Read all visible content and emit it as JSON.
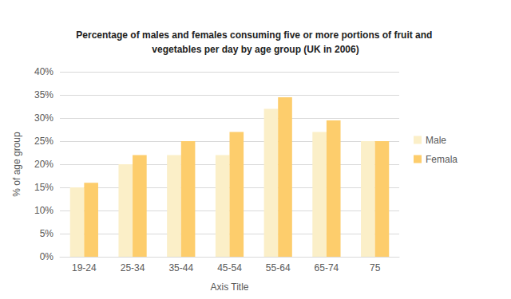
{
  "chart_data": {
    "type": "bar",
    "title": "Percentage of males and females consuming five or more portions of fruit and vegetables per day by age group (UK in 2006)",
    "x_label": "Axis Title",
    "y_label": "% of age group",
    "categories": [
      "19-24",
      "25-34",
      "35-44",
      "45-54",
      "55-64",
      "65-74",
      "75"
    ],
    "series": [
      {
        "name": "Male",
        "color": "#fbefc8",
        "values": [
          15,
          20,
          22,
          22,
          32,
          27,
          25
        ]
      },
      {
        "name": "Femala",
        "color": "#fdcd6c",
        "values": [
          16,
          22,
          25,
          27,
          34.5,
          29.5,
          25
        ]
      }
    ],
    "ylim": [
      0,
      40
    ],
    "yticks": [
      {
        "value": 0,
        "label": "0%"
      },
      {
        "value": 5,
        "label": "5%"
      },
      {
        "value": 10,
        "label": "10%"
      },
      {
        "value": 15,
        "label": "15%"
      },
      {
        "value": 20,
        "label": "20%"
      },
      {
        "value": 25,
        "label": "25%"
      },
      {
        "value": 30,
        "label": "30%"
      },
      {
        "value": 35,
        "label": "35%"
      },
      {
        "value": 40,
        "label": "40%"
      }
    ],
    "grid": true,
    "legend": "right"
  }
}
